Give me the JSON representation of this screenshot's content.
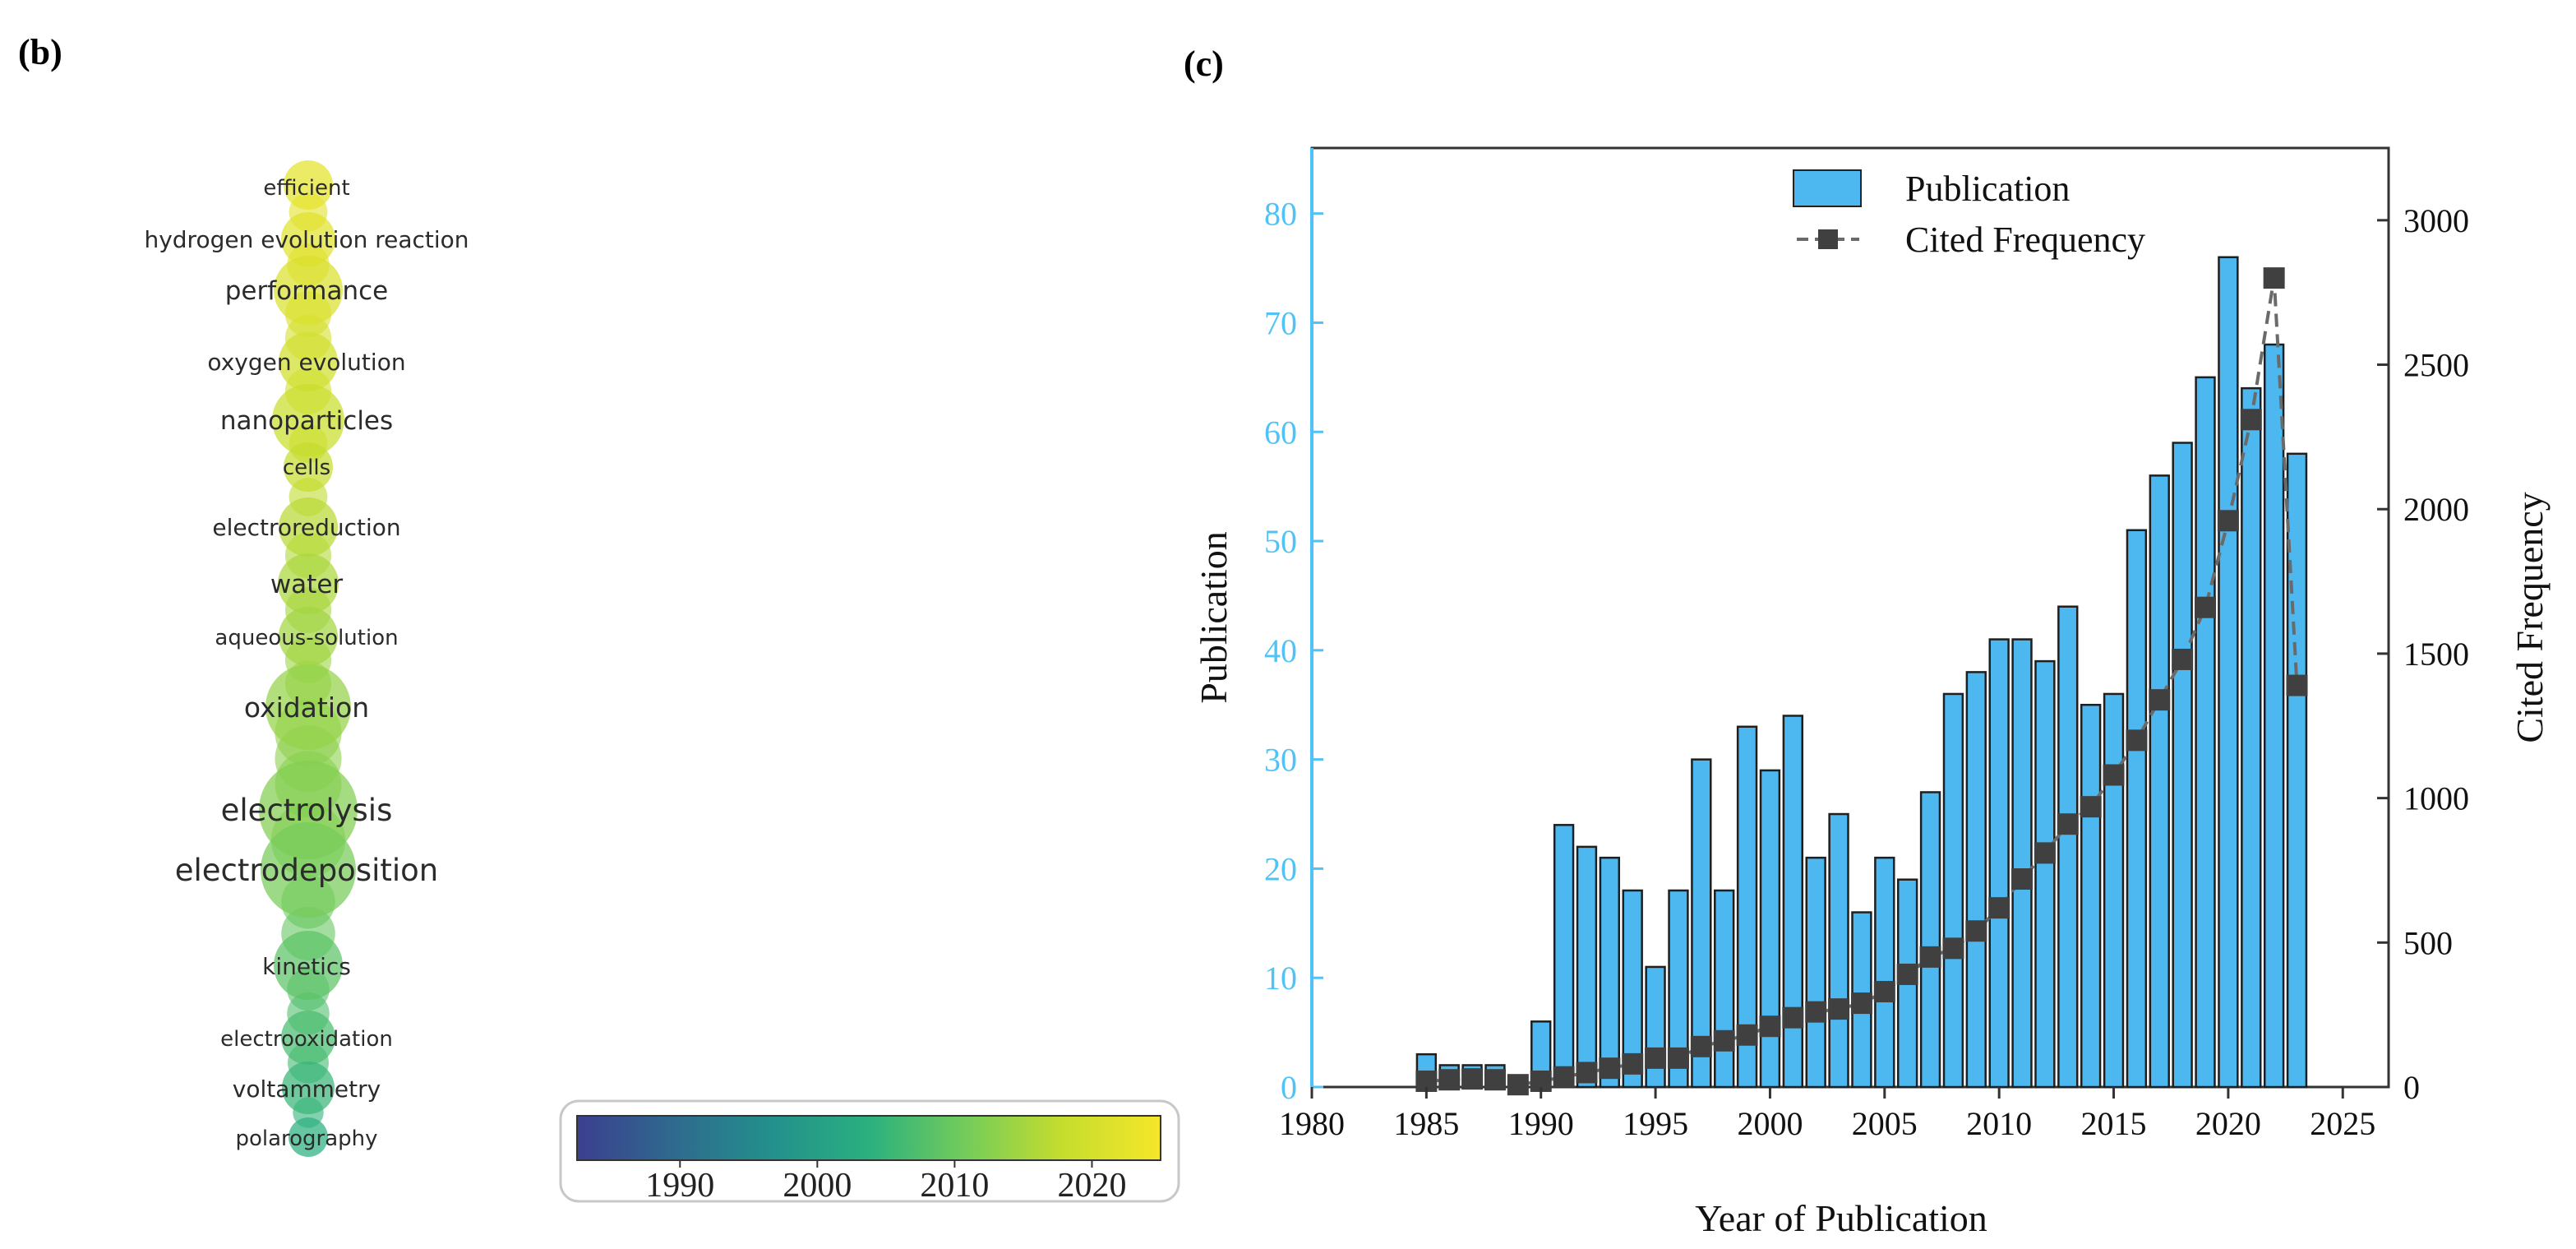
{
  "panel_b": {
    "label": "(b)",
    "keywords": [
      {
        "text": "efficient",
        "year": 2022.5
      },
      {
        "text": "hydrogen evolution reaction",
        "year": 2021.8
      },
      {
        "text": "performance",
        "year": 2020.8
      },
      {
        "text": "oxygen evolution",
        "year": 2019.6
      },
      {
        "text": "nanoparticles",
        "year": 2018.6
      },
      {
        "text": "cells",
        "year": 2017.8
      },
      {
        "text": "electroreduction",
        "year": 2016.8
      },
      {
        "text": "water",
        "year": 2015.6
      },
      {
        "text": "aqueous-solution",
        "year": 2014.8
      },
      {
        "text": "oxidation",
        "year": 2013.6
      },
      {
        "text": "electrolysis",
        "year": 2012.2
      },
      {
        "text": "electrodeposition",
        "year": 2011.0
      },
      {
        "text": "kinetics",
        "year": 2008.6
      },
      {
        "text": "electrooxidation",
        "year": 2006.8
      },
      {
        "text": "voltammetry",
        "year": 2005.2
      },
      {
        "text": "polarography",
        "year": 2003.8
      }
    ],
    "colorbar": {
      "ticks": [
        "1990",
        "2000",
        "2010",
        "2020"
      ],
      "range": [
        1982.5,
        2025
      ],
      "colors": [
        "#3b3f8f",
        "#2f6a8e",
        "#23908c",
        "#2ab07f",
        "#74cc5a",
        "#c6dd2d",
        "#f6e62a"
      ]
    }
  },
  "panel_c": {
    "label": "(c)"
  },
  "chart_data": {
    "type": "bar",
    "title": "",
    "xlabel": "Year of Publication",
    "ylabel": "Publication",
    "y2label": "Cited Frequency",
    "xlim": [
      1980,
      2027
    ],
    "ylim": [
      0,
      86
    ],
    "y2lim": [
      0,
      3250
    ],
    "x_ticks": [
      "1980",
      "1985",
      "1990",
      "1995",
      "2000",
      "2005",
      "2010",
      "2015",
      "2020",
      "2025"
    ],
    "y_ticks": [
      "0",
      "10",
      "20",
      "30",
      "40",
      "50",
      "60",
      "70",
      "80"
    ],
    "y2_ticks": [
      "0",
      "500",
      "1000",
      "1500",
      "2000",
      "2500",
      "3000"
    ],
    "legend_position": "top-right",
    "series": [
      {
        "name": "Publication",
        "type": "bar",
        "color": "#4db8f0",
        "x": [
          1985,
          1986,
          1987,
          1988,
          1990,
          1991,
          1992,
          1993,
          1994,
          1995,
          1996,
          1997,
          1998,
          1999,
          2000,
          2001,
          2002,
          2003,
          2004,
          2005,
          2006,
          2007,
          2008,
          2009,
          2010,
          2011,
          2012,
          2013,
          2014,
          2015,
          2016,
          2017,
          2018,
          2019,
          2020,
          2021,
          2022,
          2023
        ],
        "values": [
          3,
          2,
          2,
          2,
          6,
          24,
          22,
          21,
          18,
          11,
          18,
          30,
          18,
          33,
          29,
          34,
          21,
          25,
          16,
          21,
          19,
          27,
          36,
          38,
          41,
          41,
          39,
          44,
          35,
          36,
          51,
          56,
          59,
          65,
          76,
          64,
          68,
          58
        ]
      },
      {
        "name": "Cited Frequency",
        "type": "line",
        "color": "#555555",
        "x": [
          1985,
          1986,
          1987,
          1988,
          1989,
          1990,
          1991,
          1992,
          1993,
          1994,
          1995,
          1996,
          1997,
          1998,
          1999,
          2000,
          2001,
          2002,
          2003,
          2004,
          2005,
          2006,
          2007,
          2008,
          2009,
          2010,
          2011,
          2012,
          2013,
          2014,
          2015,
          2016,
          2017,
          2018,
          2019,
          2020,
          2021,
          2022,
          2023
        ],
        "values": [
          20,
          25,
          28,
          25,
          8,
          20,
          35,
          50,
          65,
          80,
          100,
          100,
          140,
          160,
          180,
          210,
          240,
          260,
          270,
          290,
          330,
          390,
          450,
          480,
          540,
          620,
          720,
          810,
          910,
          970,
          1080,
          1200,
          1340,
          1480,
          1660,
          1960,
          2310,
          2800,
          1390
        ]
      }
    ]
  }
}
